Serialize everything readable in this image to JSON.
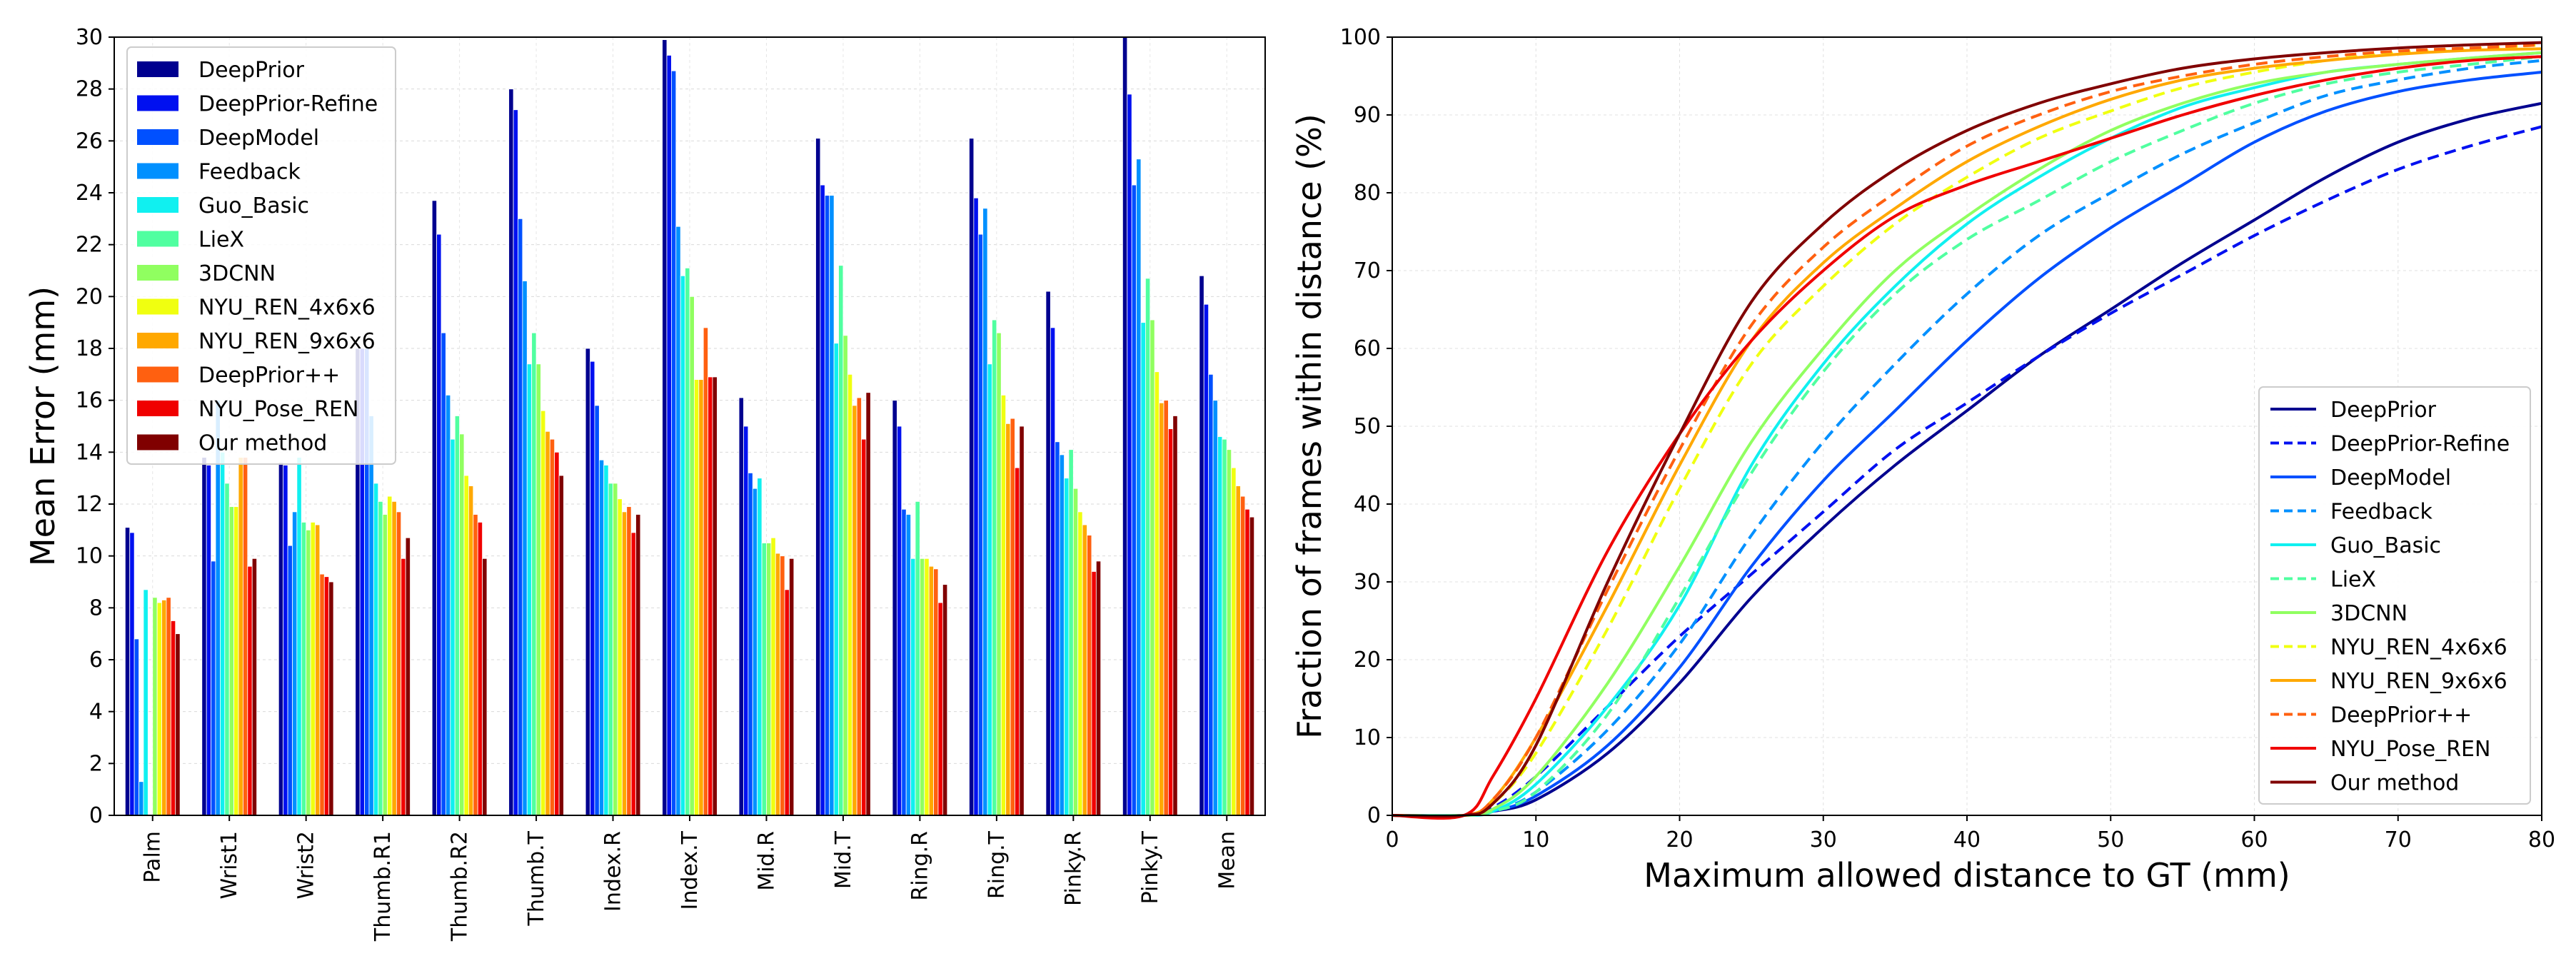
{
  "figure": {
    "description": "Two-panel comparison on hand pose estimation"
  },
  "colors": {
    "DeepPrior": "#00008f",
    "DeepPrior-Refine": "#0010f0",
    "DeepModel": "#0050ff",
    "Feedback": "#0090ff",
    "Guo_Basic": "#10f0f0",
    "LieX": "#50ffa0",
    "3DCNN": "#90ff60",
    "NYU_REN_4x6x6": "#f0ff10",
    "NYU_REN_9x6x6": "#ffa800",
    "DeepPrior++": "#ff6010",
    "NYU_Pose_REN": "#f00000",
    "Our method": "#800000"
  },
  "chart_data": [
    {
      "type": "bar",
      "ylabel": "Mean Error (mm)",
      "xlabel": "",
      "ylim": [
        0,
        30
      ],
      "yticks": [
        0,
        2,
        4,
        6,
        8,
        10,
        12,
        14,
        16,
        18,
        20,
        22,
        24,
        26,
        28,
        30
      ],
      "grid": true,
      "legend_position": "top-left",
      "categories": [
        "Palm",
        "Wrist1",
        "Wrist2",
        "Thumb.R1",
        "Thumb.R2",
        "Thumb.T",
        "Index.R",
        "Index.T",
        "Mid.R",
        "Mid.T",
        "Ring.R",
        "Ring.T",
        "Pinky.R",
        "Pinky.T",
        "Mean"
      ],
      "series": [
        {
          "name": "DeepPrior",
          "values": [
            11.1,
            13.8,
            13.6,
            18.0,
            23.7,
            28.0,
            18.0,
            29.9,
            16.1,
            26.1,
            16.0,
            26.1,
            20.2,
            30.2,
            20.8
          ]
        },
        {
          "name": "DeepPrior-Refine",
          "values": [
            10.9,
            13.5,
            13.5,
            18.0,
            22.4,
            27.2,
            17.5,
            29.3,
            15.0,
            24.3,
            15.0,
            23.8,
            18.8,
            27.8,
            19.7
          ]
        },
        {
          "name": "DeepModel",
          "values": [
            6.8,
            9.8,
            10.4,
            18.0,
            18.6,
            23.0,
            15.8,
            28.7,
            13.2,
            23.9,
            11.8,
            22.4,
            14.4,
            24.3,
            17.0
          ]
        },
        {
          "name": "Feedback",
          "values": [
            1.3,
            16.0,
            11.7,
            15.4,
            16.2,
            20.6,
            13.7,
            22.7,
            12.6,
            23.9,
            11.6,
            23.4,
            13.9,
            25.3,
            16.0
          ]
        },
        {
          "name": "Guo_Basic",
          "values": [
            8.7,
            14.0,
            13.8,
            12.8,
            14.5,
            17.4,
            13.5,
            20.8,
            13.0,
            18.2,
            9.9,
            17.4,
            13.0,
            19.0,
            14.6
          ]
        },
        {
          "name": "LieX",
          "values": [
            0,
            12.8,
            11.3,
            12.1,
            15.4,
            18.6,
            12.8,
            21.1,
            10.5,
            21.2,
            12.1,
            19.1,
            14.1,
            20.7,
            14.5
          ]
        },
        {
          "name": "3DCNN",
          "values": [
            8.4,
            11.9,
            11.0,
            11.6,
            14.7,
            17.4,
            12.8,
            20.0,
            10.5,
            18.5,
            9.9,
            18.6,
            12.6,
            19.1,
            14.1
          ]
        },
        {
          "name": "NYU_REN_4x6x6",
          "values": [
            8.2,
            11.9,
            11.3,
            12.3,
            13.1,
            15.6,
            12.2,
            16.8,
            10.7,
            17.0,
            9.9,
            16.2,
            11.7,
            17.1,
            13.4
          ]
        },
        {
          "name": "NYU_REN_9x6x6",
          "values": [
            8.3,
            13.8,
            11.2,
            12.1,
            12.7,
            14.8,
            11.7,
            16.8,
            10.1,
            15.8,
            9.6,
            15.1,
            11.2,
            15.9,
            12.7
          ]
        },
        {
          "name": "DeepPrior++",
          "values": [
            8.4,
            13.8,
            9.3,
            11.7,
            11.6,
            14.5,
            11.9,
            18.8,
            10.0,
            16.1,
            9.5,
            15.3,
            10.8,
            16.0,
            12.3
          ]
        },
        {
          "name": "NYU_Pose_REN",
          "values": [
            7.5,
            9.6,
            9.2,
            9.9,
            11.3,
            14.0,
            10.9,
            16.9,
            8.7,
            14.5,
            8.2,
            13.4,
            9.4,
            14.9,
            11.8
          ]
        },
        {
          "name": "Our method",
          "values": [
            7.0,
            9.9,
            9.0,
            10.7,
            9.9,
            13.1,
            11.6,
            16.9,
            9.9,
            16.3,
            8.9,
            15.0,
            9.8,
            15.4,
            11.5
          ]
        }
      ]
    },
    {
      "type": "line",
      "xlabel": "Maximum allowed distance to GT (mm)",
      "ylabel": "Fraction of frames within distance (%)",
      "xlim": [
        0,
        80
      ],
      "ylim": [
        0,
        100
      ],
      "xticks": [
        0,
        10,
        20,
        30,
        40,
        50,
        60,
        70,
        80
      ],
      "yticks": [
        0,
        10,
        20,
        30,
        40,
        50,
        60,
        70,
        80,
        90,
        100
      ],
      "grid": true,
      "legend_position": "bottom-right",
      "x": [
        0,
        5,
        7,
        10,
        15,
        20,
        25,
        30,
        35,
        40,
        45,
        50,
        55,
        60,
        65,
        70,
        75,
        80
      ],
      "series": [
        {
          "name": "DeepPrior",
          "dash": false,
          "values": [
            0,
            0,
            0.5,
            2,
            8,
            17,
            28,
            37,
            45,
            52,
            59,
            65,
            71,
            76.5,
            82,
            86.5,
            89.5,
            91.5
          ]
        },
        {
          "name": "DeepPrior-Refine",
          "dash": true,
          "values": [
            0,
            0,
            1,
            5,
            14,
            23,
            31,
            39,
            47,
            53,
            59,
            64.5,
            69.5,
            74.5,
            79,
            83,
            86,
            88.5
          ]
        },
        {
          "name": "DeepModel",
          "dash": false,
          "values": [
            0,
            0,
            0.5,
            2.5,
            9,
            19,
            32,
            43,
            52,
            61,
            69,
            75.5,
            81,
            86.5,
            90.5,
            93,
            94.5,
            95.5
          ]
        },
        {
          "name": "Feedback",
          "dash": true,
          "values": [
            0,
            0,
            0.5,
            3,
            11,
            22,
            36,
            48,
            58,
            67,
            74.5,
            80,
            85,
            89,
            92.5,
            94.5,
            96,
            97
          ]
        },
        {
          "name": "Guo_Basic",
          "dash": false,
          "values": [
            0,
            0,
            0.5,
            4,
            14,
            27,
            45,
            58,
            68,
            76,
            82,
            87,
            91,
            93.5,
            95.5,
            96.5,
            97.3,
            98
          ]
        },
        {
          "name": "LieX",
          "dash": true,
          "values": [
            0,
            0,
            0.5,
            3,
            13,
            28,
            44,
            57,
            67,
            74,
            79,
            84,
            88,
            91.5,
            94,
            95.5,
            96.5,
            97.5
          ]
        },
        {
          "name": "3DCNN",
          "dash": false,
          "values": [
            0,
            0,
            0.8,
            5,
            17,
            32,
            48,
            60,
            70,
            77,
            83,
            88,
            91.5,
            94,
            95.5,
            96.5,
            97.3,
            98
          ]
        },
        {
          "name": "NYU_REN_4x6x6",
          "dash": true,
          "values": [
            0,
            0,
            1.5,
            8,
            24,
            42,
            58,
            68,
            76,
            82,
            87,
            90.5,
            93.5,
            95.5,
            97,
            98,
            98.5,
            99
          ]
        },
        {
          "name": "NYU_REN_9x6x6",
          "dash": false,
          "values": [
            0,
            0,
            2,
            10,
            27,
            45,
            61,
            71,
            78,
            84,
            88.5,
            92,
            94.5,
            96,
            97,
            97.8,
            98.3,
            98.5
          ]
        },
        {
          "name": "DeepPrior++",
          "dash": true,
          "values": [
            0,
            0,
            2,
            10,
            29,
            47,
            63,
            73,
            80,
            86,
            90,
            93,
            95,
            96.5,
            97.5,
            98.2,
            98.6,
            99
          ]
        },
        {
          "name": "NYU_Pose_REN",
          "dash": false,
          "values": [
            0,
            0,
            5,
            15,
            34,
            49,
            61,
            70,
            77,
            81,
            84,
            87,
            90,
            92.5,
            94.5,
            96,
            97,
            97.5
          ]
        },
        {
          "name": "Our method",
          "dash": false,
          "values": [
            0,
            0,
            1.5,
            9,
            30,
            49,
            66,
            76,
            83,
            88,
            91.5,
            94,
            96,
            97.2,
            98,
            98.6,
            99,
            99.3
          ]
        }
      ]
    }
  ]
}
